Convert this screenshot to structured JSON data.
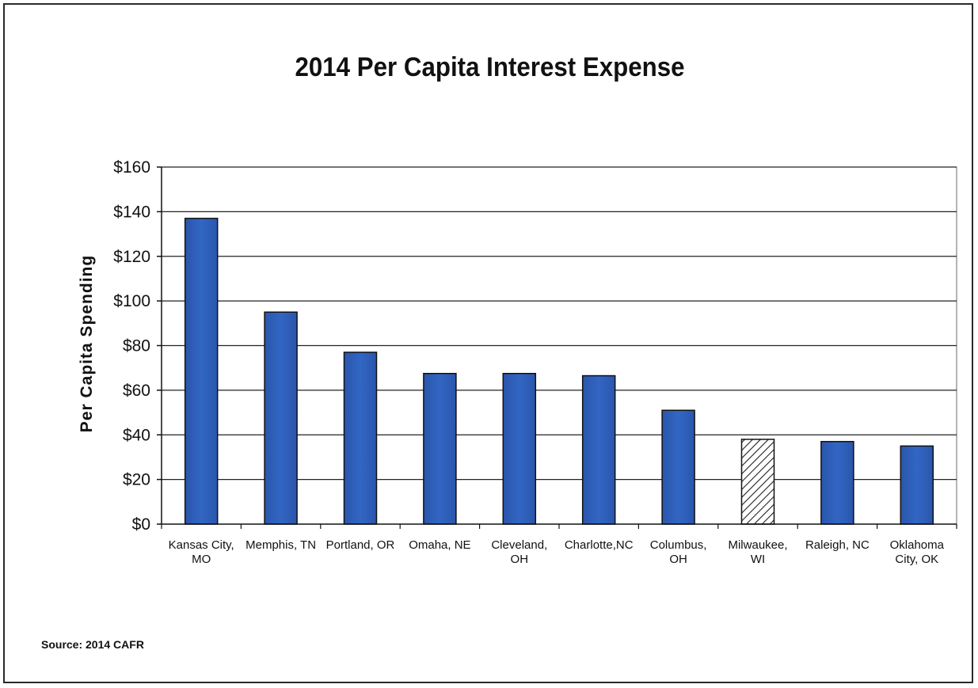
{
  "page": {
    "source": "Source:  2014 CAFR"
  },
  "chart_data": {
    "type": "bar",
    "title": "2014 Per Capita Interest Expense",
    "xlabel": "",
    "ylabel": "Per Capita Spending",
    "ylim": [
      0,
      160
    ],
    "yticks": [
      0,
      20,
      40,
      60,
      80,
      100,
      120,
      140,
      160
    ],
    "ytick_labels": [
      "$0",
      "$20",
      "$40",
      "$60",
      "$80",
      "$100",
      "$120",
      "$140",
      "$160"
    ],
    "grid": true,
    "legend": "none",
    "colors": {
      "bar": "#2f5fb8",
      "highlight_bar": "hatched",
      "grid": "#222222"
    },
    "categories": [
      [
        "Kansas City,",
        "MO"
      ],
      [
        "Memphis, TN"
      ],
      [
        "Portland, OR"
      ],
      [
        "Omaha, NE"
      ],
      [
        "Cleveland,",
        "OH"
      ],
      [
        "Charlotte,NC"
      ],
      [
        "Columbus,",
        "OH"
      ],
      [
        "Milwaukee,",
        "WI"
      ],
      [
        "Raleigh, NC"
      ],
      [
        "Oklahoma",
        "City, OK"
      ]
    ],
    "values": [
      137,
      95,
      77,
      67.5,
      67.5,
      66.5,
      51,
      38,
      37,
      35
    ],
    "highlight": [
      false,
      false,
      false,
      false,
      false,
      false,
      false,
      true,
      false,
      false
    ]
  }
}
